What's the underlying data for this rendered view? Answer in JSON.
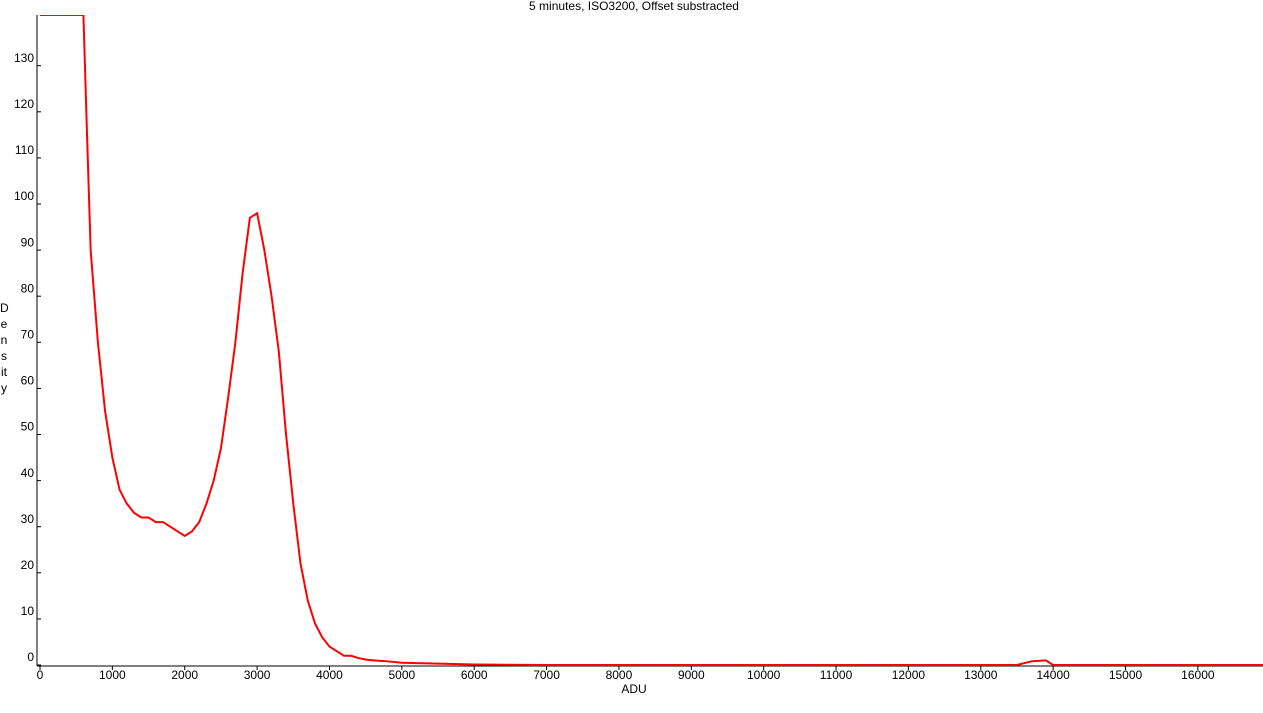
{
  "chart_data": {
    "type": "line",
    "title": "5 minutes, ISO3200, Offset substracted",
    "xlabel": "ADU",
    "ylabel": "Density",
    "x": [
      0,
      100,
      200,
      300,
      400,
      500,
      600,
      650,
      700,
      800,
      900,
      1000,
      1100,
      1200,
      1300,
      1400,
      1500,
      1600,
      1700,
      1800,
      1900,
      2000,
      2100,
      2200,
      2300,
      2400,
      2500,
      2600,
      2700,
      2800,
      2900,
      3000,
      3100,
      3200,
      3300,
      3400,
      3500,
      3600,
      3700,
      3800,
      3900,
      4000,
      4100,
      4200,
      4300,
      4400,
      4500,
      4600,
      4800,
      5000,
      5500,
      6000,
      7000,
      13500,
      13700,
      13900,
      14000,
      16900
    ],
    "series": [
      {
        "name": "Density",
        "color": "#ff0000",
        "values": [
          141,
          141,
          141,
          141,
          141,
          141,
          141,
          115,
          90,
          70,
          55,
          45,
          38,
          35,
          33,
          32,
          32,
          31,
          31,
          30,
          29,
          28,
          29,
          31,
          35,
          40,
          47,
          58,
          70,
          85,
          97,
          98,
          90,
          80,
          68,
          50,
          35,
          22,
          14,
          9,
          6,
          4,
          3,
          2,
          2,
          1.5,
          1.2,
          1,
          0.8,
          0.5,
          0.3,
          0.1,
          0,
          0,
          0.8,
          1,
          0,
          0
        ]
      }
    ],
    "xlim": [
      0,
      16900
    ],
    "ylim": [
      0,
      141
    ],
    "xticks": [
      0,
      1000,
      2000,
      3000,
      4000,
      5000,
      6000,
      7000,
      8000,
      9000,
      10000,
      11000,
      12000,
      13000,
      14000,
      15000,
      16000
    ],
    "yticks": [
      0,
      10,
      20,
      30,
      40,
      50,
      60,
      70,
      80,
      90,
      100,
      110,
      120,
      130
    ],
    "grid": false
  }
}
